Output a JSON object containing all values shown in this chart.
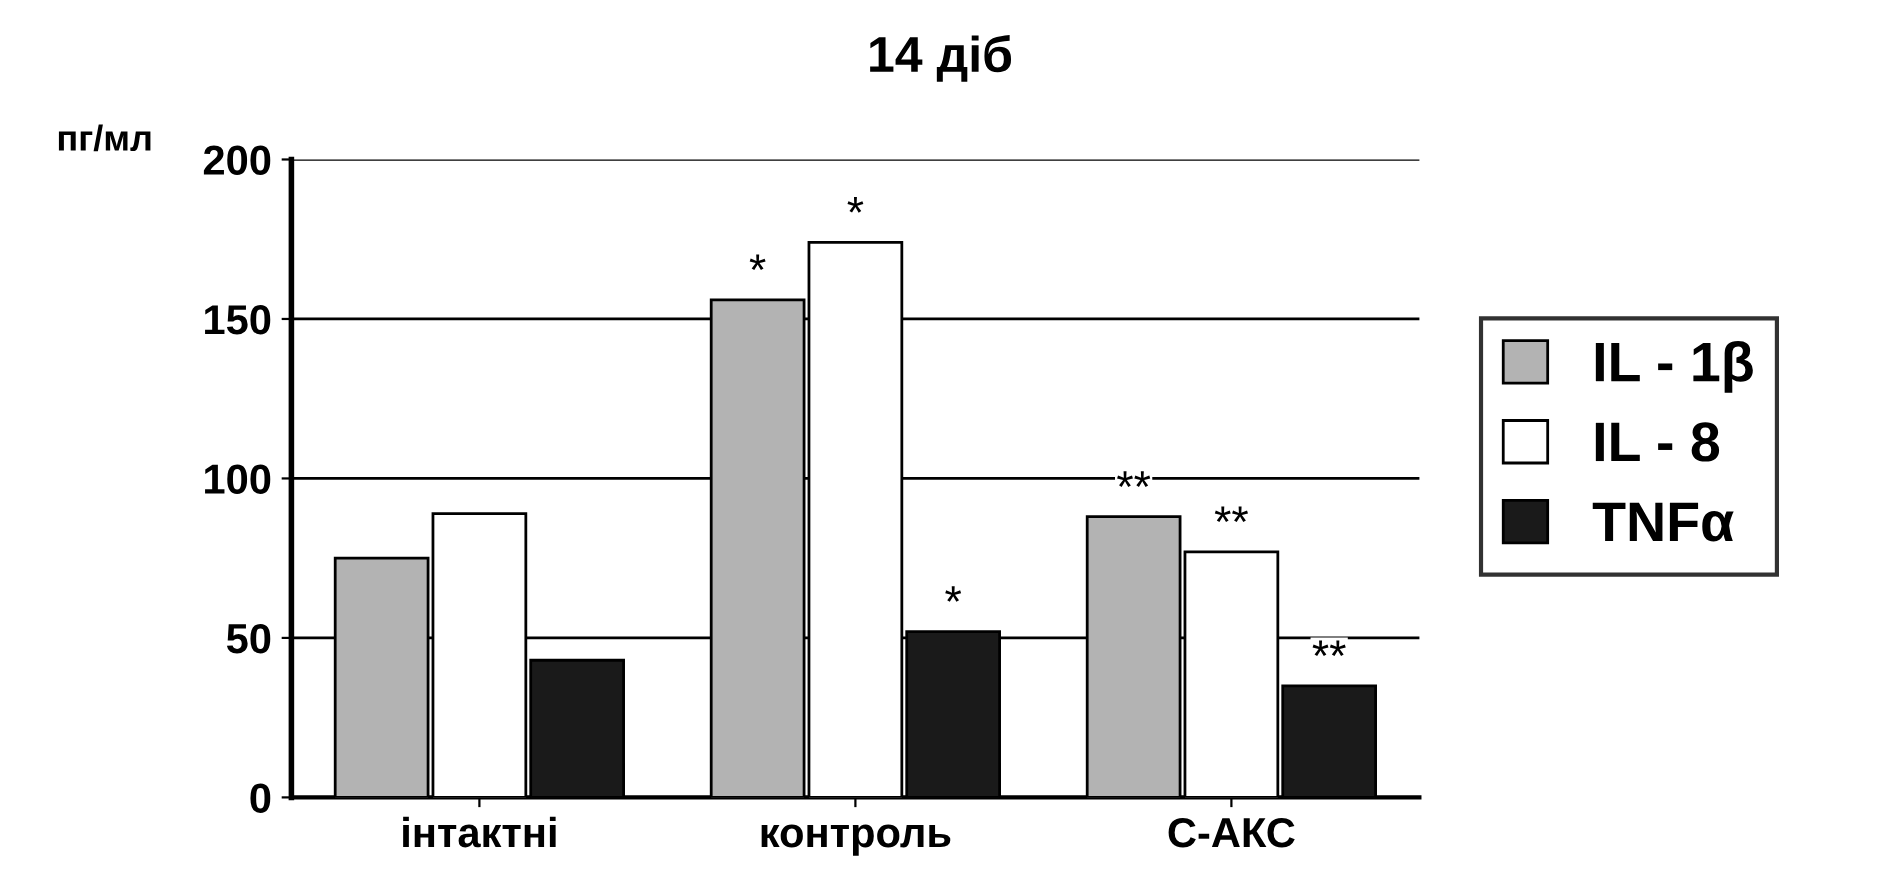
{
  "chart_data": {
    "type": "bar",
    "title": "14 діб",
    "ylabel": "пг/мл",
    "categories": [
      "інтактні",
      "контроль",
      "С-АКС"
    ],
    "series": [
      {
        "name": "IL - 1β",
        "color": "#b3b3b3",
        "values": [
          75,
          156,
          88
        ],
        "value_labels": [
          null,
          "*",
          "**"
        ]
      },
      {
        "name": "IL - 8",
        "color": "#ffffff",
        "values": [
          89,
          174,
          77
        ],
        "value_labels": [
          null,
          "*",
          "**"
        ]
      },
      {
        "name": "TNFα",
        "color": "#1a1a1a",
        "values": [
          43,
          52,
          35
        ],
        "value_labels": [
          null,
          "*",
          "**"
        ]
      }
    ],
    "ylim": [
      0,
      200
    ],
    "yticks": [
      0,
      50,
      100,
      150,
      200
    ],
    "grid": "y",
    "legend": "right"
  }
}
